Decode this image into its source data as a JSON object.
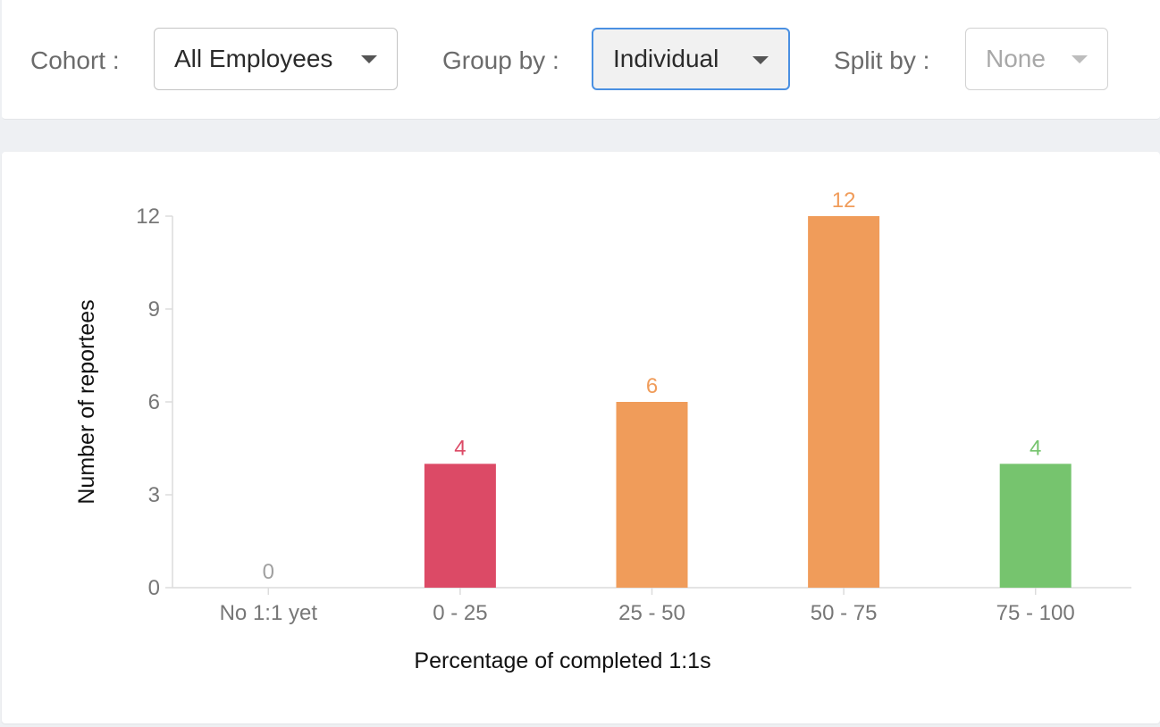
{
  "filters": {
    "cohort": {
      "label": "Cohort :",
      "value": "All Employees"
    },
    "group_by": {
      "label": "Group by :",
      "value": "Individual"
    },
    "split_by": {
      "label": "Split by :",
      "value": "None"
    }
  },
  "colors": {
    "red": "#dc4a66",
    "orange": "#f09c5a",
    "green": "#76c46e",
    "gray": "#a0a0a0",
    "focus": "#4a90e2"
  },
  "chart_data": {
    "type": "bar",
    "xlabel": "Percentage of completed 1:1s",
    "ylabel": "Number of reportees",
    "categories": [
      "No 1:1 yet",
      "0 - 25",
      "25 - 50",
      "50 - 75",
      "75 - 100"
    ],
    "values": [
      0,
      4,
      6,
      12,
      4
    ],
    "bar_colors": [
      "#a0a0a0",
      "#dc4a66",
      "#f09c5a",
      "#f09c5a",
      "#76c46e"
    ],
    "yticks": [
      0,
      3,
      6,
      9,
      12
    ],
    "ylim": [
      0,
      12
    ],
    "grid": false,
    "legend": "none"
  }
}
